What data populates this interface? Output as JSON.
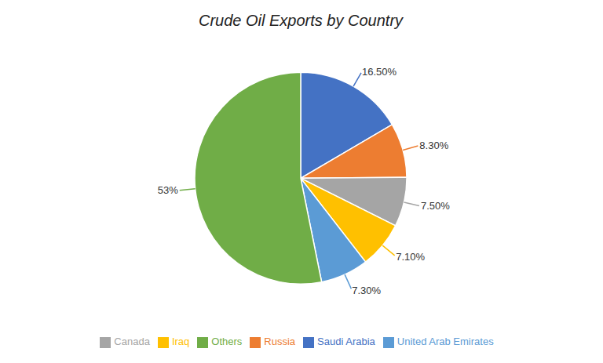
{
  "chart_data": {
    "type": "pie",
    "title": "Crude Oil Exports by Country",
    "categories": [
      "Saudi Arabia",
      "Russia",
      "Canada",
      "Iraq",
      "United Arab Emirates",
      "Others"
    ],
    "values": [
      16.5,
      8.3,
      7.5,
      7.1,
      7.3,
      53
    ],
    "value_labels": [
      "16.50%",
      "8.30%",
      "7.50%",
      "7.10%",
      "7.30%",
      "53%"
    ],
    "colors": [
      "#4472C4",
      "#ED7D31",
      "#A5A5A5",
      "#FFC000",
      "#5B9BD5",
      "#70AD47"
    ],
    "data_labels": true,
    "legend": "bottom"
  }
}
